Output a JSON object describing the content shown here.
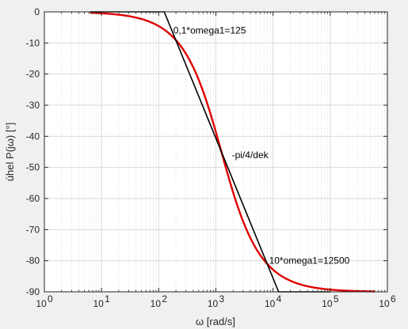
{
  "chart_data": {
    "type": "line",
    "xlabel": "ω [rad/s]",
    "ylabel": "úhel P(jω) [°]",
    "xscale": "log",
    "xlim": [
      1,
      1000000
    ],
    "ylim": [
      -90,
      0
    ],
    "x_ticks": [
      {
        "value": 1,
        "base": "10",
        "exp": "0"
      },
      {
        "value": 10,
        "base": "10",
        "exp": "1"
      },
      {
        "value": 100,
        "base": "10",
        "exp": "2"
      },
      {
        "value": 1000,
        "base": "10",
        "exp": "3"
      },
      {
        "value": 10000,
        "base": "10",
        "exp": "4"
      },
      {
        "value": 100000,
        "base": "10",
        "exp": "5"
      },
      {
        "value": 1000000,
        "base": "10",
        "exp": "6"
      }
    ],
    "y_ticks": [
      0,
      -10,
      -20,
      -30,
      -40,
      -50,
      -60,
      -70,
      -80,
      -90
    ],
    "grid": true,
    "series": [
      {
        "kind": "exact",
        "color": "#e00000",
        "omega1": 1250,
        "x_range": [
          6.3,
          600000
        ],
        "formula": "-atan(omega/omega1) in degrees"
      },
      {
        "kind": "asymptotic",
        "color": "#000000",
        "points": [
          [
            6.3,
            0
          ],
          [
            125,
            0
          ],
          [
            12500,
            -90
          ],
          [
            100000,
            -90
          ]
        ]
      }
    ],
    "annotations": [
      {
        "text": "0,1*omega1=125",
        "x": 180,
        "y": -6
      },
      {
        "text": "-pi/4/dek",
        "x": 1900,
        "y": -46
      },
      {
        "text": "10*omega1=12500",
        "x": 8500,
        "y": -80
      }
    ]
  }
}
